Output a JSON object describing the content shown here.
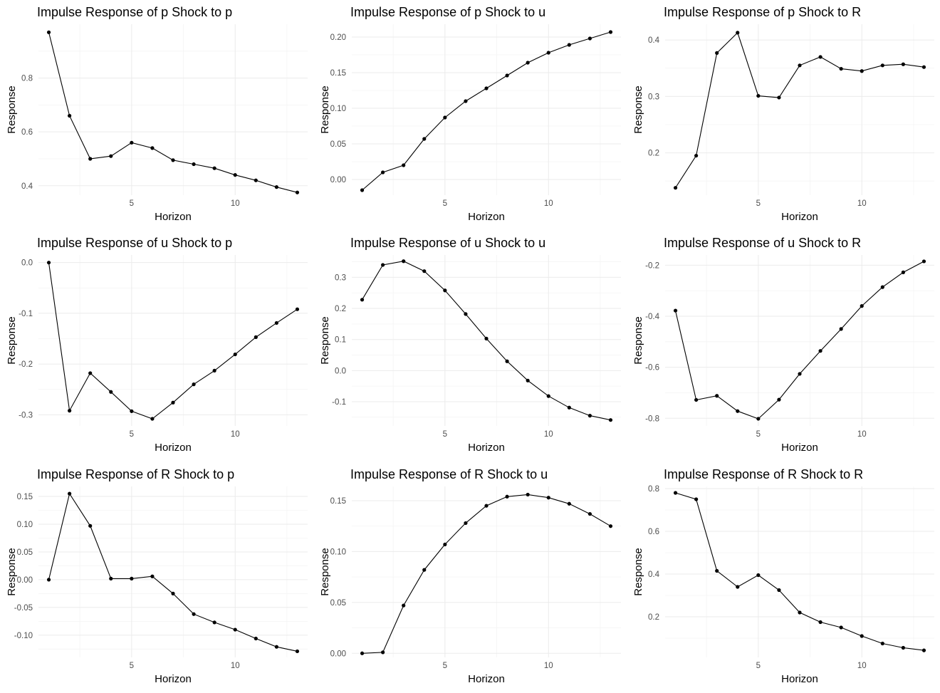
{
  "chart_data": [
    {
      "type": "line",
      "title": "Impulse Response of p Shock to p",
      "xlabel": "Horizon",
      "ylabel": "Response",
      "x": [
        1,
        2,
        3,
        4,
        5,
        6,
        7,
        8,
        9,
        10,
        11,
        12,
        13
      ],
      "values": [
        0.97,
        0.66,
        0.5,
        0.51,
        0.56,
        0.54,
        0.495,
        0.48,
        0.465,
        0.44,
        0.42,
        0.395,
        0.375
      ],
      "xlim": [
        0.5,
        13.5
      ],
      "ylim": [
        0.365,
        1.0
      ],
      "xticks": [
        5,
        10
      ],
      "xticklabels": [
        "5",
        "10"
      ],
      "yticks": [
        0.4,
        0.6,
        0.8
      ],
      "yticklabels": [
        "0.4",
        "0.6",
        "0.8"
      ],
      "grid": true
    },
    {
      "type": "line",
      "title": "Impulse Response of p Shock to u",
      "xlabel": "Horizon",
      "ylabel": "Response",
      "x": [
        1,
        2,
        3,
        4,
        5,
        6,
        7,
        8,
        9,
        10,
        11,
        12,
        13
      ],
      "values": [
        -0.015,
        0.01,
        0.02,
        0.057,
        0.087,
        0.11,
        0.128,
        0.146,
        0.164,
        0.178,
        0.189,
        0.198,
        0.207
      ],
      "xlim": [
        0.5,
        13.5
      ],
      "ylim": [
        -0.022,
        0.218
      ],
      "xticks": [
        5,
        10
      ],
      "xticklabels": [
        "5",
        "10"
      ],
      "yticks": [
        0.0,
        0.05,
        0.1,
        0.15,
        0.2
      ],
      "yticklabels": [
        "0.00",
        "0.05",
        "0.10",
        "0.15",
        "0.20"
      ],
      "grid": true
    },
    {
      "type": "line",
      "title": "Impulse Response of p Shock to R",
      "xlabel": "Horizon",
      "ylabel": "Response",
      "x": [
        1,
        2,
        3,
        4,
        5,
        6,
        7,
        8,
        9,
        10,
        11,
        12,
        13
      ],
      "values": [
        0.138,
        0.195,
        0.377,
        0.413,
        0.301,
        0.298,
        0.355,
        0.37,
        0.349,
        0.345,
        0.355,
        0.357,
        0.352
      ],
      "xlim": [
        0.5,
        13.5
      ],
      "ylim": [
        0.125,
        0.428
      ],
      "xticks": [
        5,
        10
      ],
      "xticklabels": [
        "5",
        "10"
      ],
      "yticks": [
        0.2,
        0.3,
        0.4
      ],
      "yticklabels": [
        "0.2",
        "0.3",
        "0.4"
      ],
      "grid": true
    },
    {
      "type": "line",
      "title": "Impulse Response of u Shock to p",
      "xlabel": "Horizon",
      "ylabel": "Response",
      "x": [
        1,
        2,
        3,
        4,
        5,
        6,
        7,
        8,
        9,
        10,
        11,
        12,
        13
      ],
      "values": [
        0.0,
        -0.292,
        -0.218,
        -0.255,
        -0.293,
        -0.308,
        -0.276,
        -0.24,
        -0.213,
        -0.181,
        -0.147,
        -0.119,
        -0.092
      ],
      "xlim": [
        0.5,
        13.5
      ],
      "ylim": [
        -0.322,
        0.015
      ],
      "xticks": [
        5,
        10
      ],
      "xticklabels": [
        "5",
        "10"
      ],
      "yticks": [
        -0.3,
        -0.2,
        -0.1,
        0.0
      ],
      "yticklabels": [
        "-0.3",
        "-0.2",
        "-0.1",
        "0.0"
      ],
      "grid": true
    },
    {
      "type": "line",
      "title": "Impulse Response of u Shock to u",
      "xlabel": "Horizon",
      "ylabel": "Response",
      "x": [
        1,
        2,
        3,
        4,
        5,
        6,
        7,
        8,
        9,
        10,
        11,
        12,
        13
      ],
      "values": [
        0.228,
        0.34,
        0.352,
        0.32,
        0.258,
        0.182,
        0.103,
        0.03,
        -0.032,
        -0.082,
        -0.119,
        -0.145,
        -0.159
      ],
      "xlim": [
        0.5,
        13.5
      ],
      "ylim": [
        -0.178,
        0.372
      ],
      "xticks": [
        5,
        10
      ],
      "xticklabels": [
        "5",
        "10"
      ],
      "yticks": [
        -0.1,
        0.0,
        0.1,
        0.2,
        0.3
      ],
      "yticklabels": [
        "-0.1",
        "0.0",
        "0.1",
        "0.2",
        "0.3"
      ],
      "grid": true
    },
    {
      "type": "line",
      "title": "Impulse Response of u Shock to R",
      "xlabel": "Horizon",
      "ylabel": "Response",
      "x": [
        1,
        2,
        3,
        4,
        5,
        6,
        7,
        8,
        9,
        10,
        11,
        12,
        13
      ],
      "values": [
        -0.378,
        -0.728,
        -0.712,
        -0.772,
        -0.802,
        -0.727,
        -0.626,
        -0.536,
        -0.45,
        -0.36,
        -0.286,
        -0.228,
        -0.185
      ],
      "xlim": [
        0.5,
        13.5
      ],
      "ylim": [
        -0.83,
        -0.16
      ],
      "xticks": [
        5,
        10
      ],
      "xticklabels": [
        "5",
        "10"
      ],
      "yticks": [
        -0.8,
        -0.6,
        -0.4,
        -0.2
      ],
      "yticklabels": [
        "-0.8",
        "-0.6",
        "-0.4",
        "-0.2"
      ],
      "grid": true
    },
    {
      "type": "line",
      "title": "Impulse Response of R Shock to p",
      "xlabel": "Horizon",
      "ylabel": "Response",
      "x": [
        1,
        2,
        3,
        4,
        5,
        6,
        7,
        8,
        9,
        10,
        11,
        12,
        13
      ],
      "values": [
        0.0,
        0.155,
        0.097,
        0.002,
        0.002,
        0.006,
        -0.025,
        -0.062,
        -0.077,
        -0.09,
        -0.106,
        -0.121,
        -0.129
      ],
      "xlim": [
        0.5,
        13.5
      ],
      "ylim": [
        -0.14,
        0.168
      ],
      "xticks": [
        5,
        10
      ],
      "xticklabels": [
        "5",
        "10"
      ],
      "yticks": [
        -0.1,
        -0.05,
        0.0,
        0.05,
        0.1,
        0.15
      ],
      "yticklabels": [
        "-0.10",
        "-0.05",
        "0.00",
        "0.05",
        "0.10",
        "0.15"
      ],
      "grid": true
    },
    {
      "type": "line",
      "title": "Impulse Response of R Shock to u",
      "xlabel": "Horizon",
      "ylabel": "Response",
      "x": [
        1,
        2,
        3,
        4,
        5,
        6,
        7,
        8,
        9,
        10,
        11,
        12,
        13
      ],
      "values": [
        0.0,
        0.001,
        0.047,
        0.082,
        0.107,
        0.128,
        0.145,
        0.154,
        0.156,
        0.153,
        0.147,
        0.137,
        0.125
      ],
      "xlim": [
        0.5,
        13.5
      ],
      "ylim": [
        -0.004,
        0.164
      ],
      "xticks": [
        5,
        10
      ],
      "xticklabels": [
        "5",
        "10"
      ],
      "yticks": [
        0.0,
        0.05,
        0.1,
        0.15
      ],
      "yticklabels": [
        "0.00",
        "0.05",
        "0.10",
        "0.15"
      ],
      "grid": true
    },
    {
      "type": "line",
      "title": "Impulse Response of R Shock to R",
      "xlabel": "Horizon",
      "ylabel": "Response",
      "x": [
        1,
        2,
        3,
        4,
        5,
        6,
        7,
        8,
        9,
        10,
        11,
        12,
        13
      ],
      "values": [
        0.78,
        0.75,
        0.415,
        0.34,
        0.395,
        0.325,
        0.22,
        0.175,
        0.15,
        0.11,
        0.075,
        0.055,
        0.043
      ],
      "xlim": [
        0.5,
        13.5
      ],
      "ylim": [
        0.01,
        0.81
      ],
      "xticks": [
        5,
        10
      ],
      "xticklabels": [
        "5",
        "10"
      ],
      "yticks": [
        0.2,
        0.4,
        0.6,
        0.8
      ],
      "yticklabels": [
        "0.2",
        "0.4",
        "0.6",
        "0.8"
      ],
      "grid": true
    }
  ]
}
